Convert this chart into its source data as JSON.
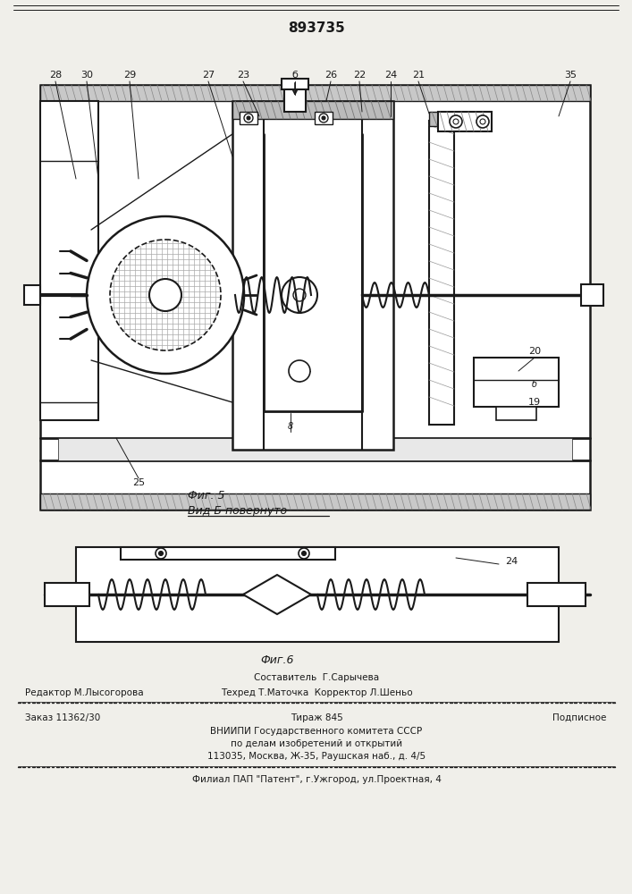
{
  "patent_number": "893735",
  "fig5_label": "Фиг. 5",
  "fig5_sublabel": "Вид Б повернуто",
  "fig6_label": "Фиг.6",
  "footer_compose": "Составитель  Г.Сарычева",
  "footer_editor": "Редактор М.Лысогорова",
  "footer_techred": "Техред Т.Маточка  Корректор Л.Шеньо",
  "footer_order": "Заказ 11362/30",
  "footer_tirazh": "Тираж 845",
  "footer_podp": "Подписное",
  "footer_vniip": "ВНИИПИ Государственного комитета СССР",
  "footer_dela": "по делам изобретений и открытий",
  "footer_addr": "113035, Москва, Ж-35, Раушская наб., д. 4/5",
  "footer_filial": "Филиал ПАП \"Патент\", г.Ужгород, ул.Проектная, 4",
  "bg_color": "#f0efea",
  "line_color": "#1a1a1a"
}
